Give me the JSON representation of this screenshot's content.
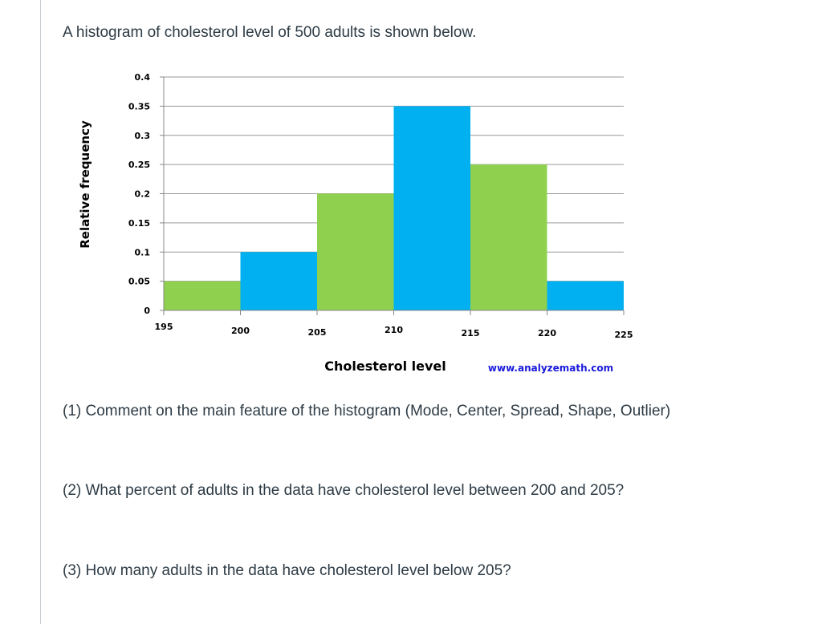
{
  "intro": "A histogram of cholesterol level of 500 adults is shown below.",
  "questions": [
    "(1) Comment on the main feature of the histogram (Mode, Center, Spread, Shape, Outlier)",
    "(2) What percent of adults in the data have cholesterol level between 200 and 205?",
    "(3) How many adults in the data have cholesterol level below 205?"
  ],
  "watermark": "www.analyzemath.com",
  "chart_data": {
    "type": "bar",
    "subtype": "histogram",
    "bin_edges": [
      195,
      200,
      205,
      210,
      215,
      220,
      225
    ],
    "values": [
      0.05,
      0.1,
      0.2,
      0.35,
      0.25,
      0.05
    ],
    "bar_colors": [
      "#8fd14f",
      "#00b0f0",
      "#8fd14f",
      "#00b0f0",
      "#8fd14f",
      "#00b0f0"
    ],
    "xlabel": "Cholesterol level",
    "ylabel": "Relative frequency",
    "ylim": [
      0,
      0.4
    ],
    "yticks": [
      "0",
      "0.05",
      "0.1",
      "0.15",
      "0.2",
      "0.25",
      "0.3",
      "0.35",
      "0.4"
    ],
    "xticks": [
      "195",
      "200",
      "205",
      "210",
      "215",
      "220",
      "225"
    ],
    "grid": true
  }
}
